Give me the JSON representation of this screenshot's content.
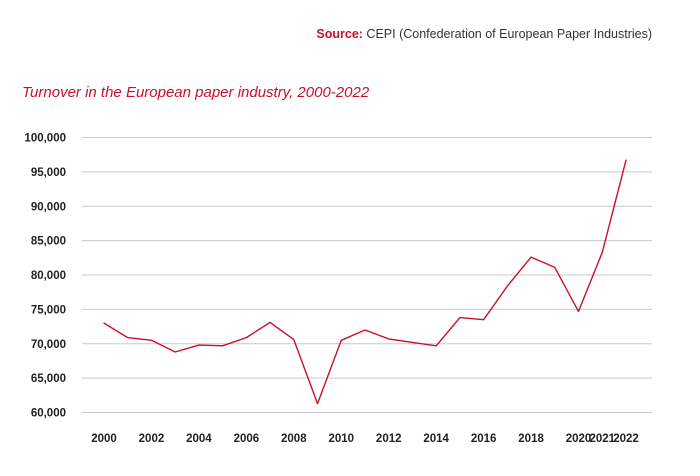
{
  "source": {
    "label": "Source:",
    "text": "CEPI (Confederation of European Paper Industries)"
  },
  "chart_data": {
    "type": "line",
    "title": "Turnover in the European paper industry, 2000-2022",
    "xlabel": "",
    "ylabel": "",
    "ylim": [
      60000,
      100000
    ],
    "yticks": [
      60000,
      65000,
      70000,
      75000,
      80000,
      85000,
      90000,
      95000,
      100000
    ],
    "ytick_labels": [
      "60,000",
      "65,000",
      "70,000",
      "75,000",
      "80,000",
      "85,000",
      "90,000",
      "95,000",
      "100,000"
    ],
    "xtick_labels": [
      "2000",
      "2002",
      "2004",
      "2006",
      "2008",
      "2010",
      "2012",
      "2014",
      "2016",
      "2018",
      "2020",
      "2021",
      "2022"
    ],
    "xtick_years": [
      2000,
      2002,
      2004,
      2006,
      2008,
      2010,
      2012,
      2014,
      2016,
      2018,
      2020,
      2021,
      2022
    ],
    "grid": true,
    "color": "#c8102e",
    "series": [
      {
        "x": [
          2000,
          2001,
          2002,
          2003,
          2004,
          2005,
          2006,
          2007,
          2008,
          2009,
          2010,
          2011,
          2012,
          2013,
          2014,
          2015,
          2016,
          2017,
          2018,
          2019,
          2020,
          2021,
          2022
        ],
        "values": [
          73000,
          70900,
          70500,
          68800,
          69800,
          69700,
          70900,
          73100,
          70600,
          61300,
          70500,
          72000,
          70700,
          70200,
          69700,
          73800,
          73500,
          78400,
          82600,
          81100,
          74700,
          83300,
          96700
        ]
      }
    ]
  }
}
